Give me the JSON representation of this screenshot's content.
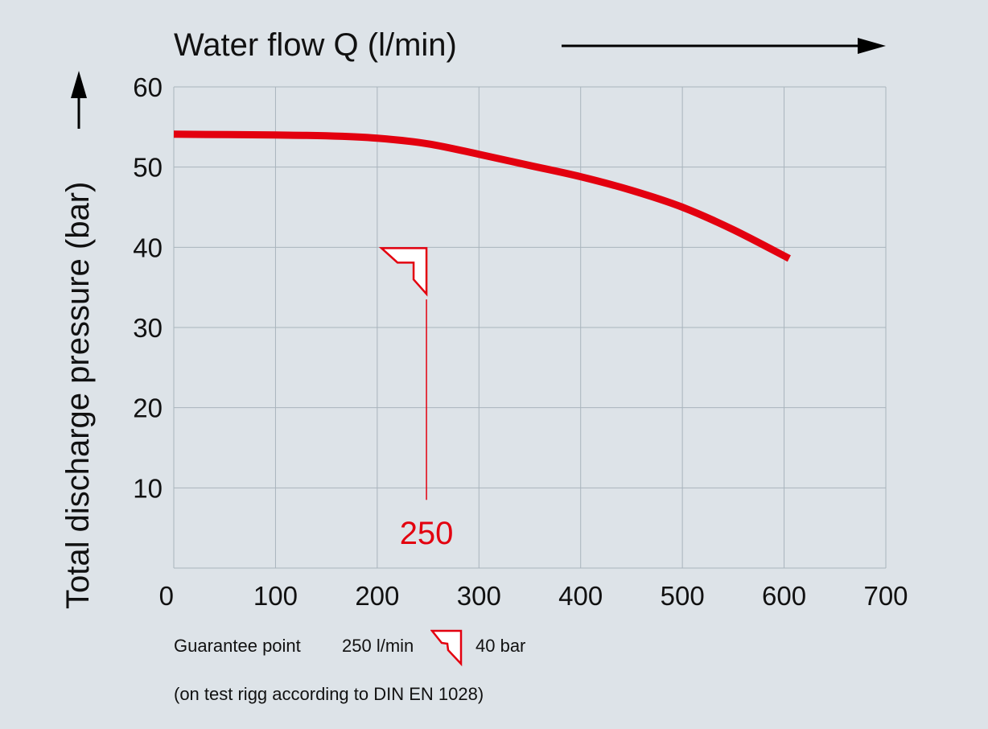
{
  "colors": {
    "background": "#dde3e8",
    "curve": "#e3000f",
    "grid": "#a9b4bd",
    "text": "#111111"
  },
  "chart_data": {
    "type": "line",
    "title": "",
    "xlabel": "Water flow Q (l/min)",
    "ylabel": "Total discharge pressure (bar)",
    "xlim": [
      0,
      700
    ],
    "ylim": [
      0,
      60
    ],
    "x_ticks": [
      0,
      100,
      200,
      300,
      400,
      500,
      600,
      700
    ],
    "y_ticks": [
      10,
      20,
      30,
      40,
      50,
      60
    ],
    "grid": true,
    "series": [
      {
        "x": [
          0,
          100,
          150,
          200,
          250,
          300,
          350,
          400,
          450,
          500,
          550,
          605
        ],
        "y": [
          54.1,
          54.0,
          53.9,
          53.6,
          52.9,
          51.6,
          50.2,
          48.8,
          47.1,
          45.0,
          42.2,
          38.6
        ]
      }
    ],
    "annotation": {
      "label": "250",
      "x": 250,
      "y_top": 33.5,
      "y_bottom": 8.5,
      "marker_y": 40
    }
  },
  "footer": {
    "guarantee_label": "Guarantee point",
    "flow_value": "250 l/min",
    "pressure_value": "40 bar",
    "test_note": "(on test rigg according to DIN EN 1028)"
  }
}
